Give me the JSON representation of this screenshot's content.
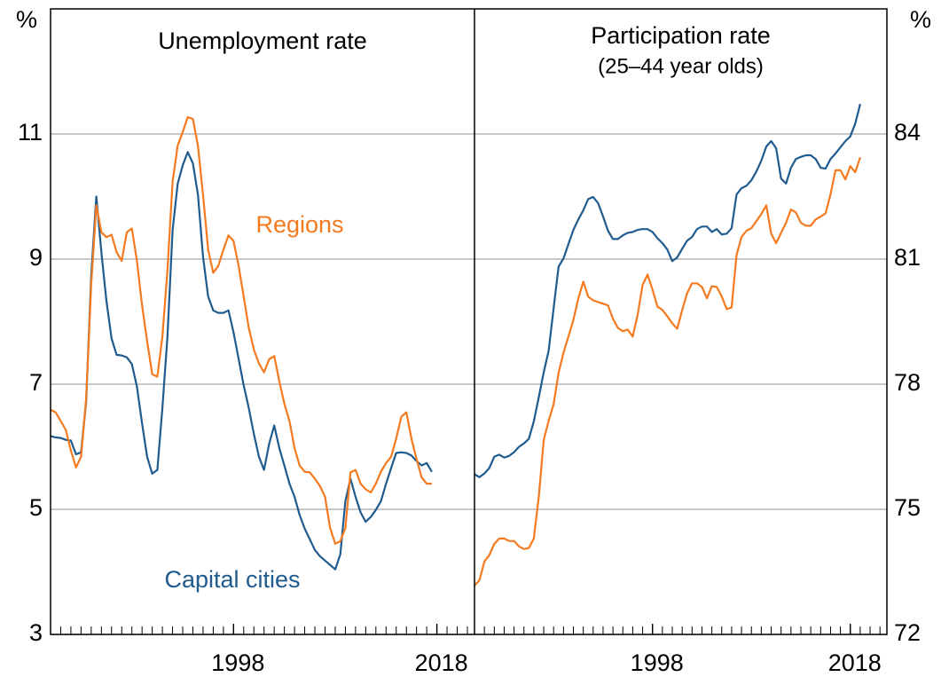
{
  "chart_data": [
    {
      "type": "line",
      "title": "Unemployment rate",
      "y_label": "%",
      "x": [
        1980,
        1980.5,
        1981,
        1981.5,
        1982,
        1982.5,
        1983,
        1983.5,
        1984,
        1984.5,
        1985,
        1985.5,
        1986,
        1986.5,
        1987,
        1987.5,
        1988,
        1988.5,
        1989,
        1989.5,
        1990,
        1990.5,
        1991,
        1991.5,
        1992,
        1992.5,
        1993,
        1993.5,
        1994,
        1994.5,
        1995,
        1995.5,
        1996,
        1996.5,
        1997,
        1997.5,
        1998,
        1998.5,
        1999,
        1999.5,
        2000,
        2000.5,
        2001,
        2001.5,
        2002,
        2002.5,
        2003,
        2003.5,
        2004,
        2004.5,
        2005,
        2005.5,
        2006,
        2006.5,
        2007,
        2007.5,
        2008,
        2008.5,
        2009,
        2009.5,
        2010,
        2010.5,
        2011,
        2011.5,
        2012,
        2012.5,
        2013,
        2013.5,
        2014,
        2014.5,
        2015,
        2015.5,
        2016,
        2016.5,
        2017,
        2017.5
      ],
      "xlim": [
        1980,
        2021.7
      ],
      "xticks": [
        1998,
        2018
      ],
      "ylim": [
        3,
        13
      ],
      "yticks": [
        3,
        5,
        7,
        9,
        11
      ],
      "grid": true,
      "series": [
        {
          "name": "Capital cities",
          "color": "#1f5b8e",
          "values": [
            6.17,
            6.15,
            6.14,
            6.11,
            6.1,
            5.88,
            5.91,
            6.71,
            8.75,
            10.0,
            9.11,
            8.33,
            7.73,
            7.47,
            7.46,
            7.43,
            7.32,
            6.96,
            6.37,
            5.84,
            5.57,
            5.63,
            6.62,
            7.76,
            9.46,
            10.2,
            10.5,
            10.71,
            10.53,
            10.03,
            9.04,
            8.4,
            8.18,
            8.14,
            8.14,
            8.18,
            7.83,
            7.4,
            6.98,
            6.62,
            6.2,
            5.84,
            5.63,
            6.05,
            6.34,
            5.98,
            5.7,
            5.41,
            5.2,
            4.91,
            4.69,
            4.52,
            4.35,
            4.25,
            4.18,
            4.11,
            4.04,
            4.28,
            5.13,
            5.49,
            5.2,
            4.95,
            4.8,
            4.88,
            4.99,
            5.13,
            5.41,
            5.66,
            5.9,
            5.91,
            5.9,
            5.86,
            5.77,
            5.7,
            5.74,
            5.6
          ]
        },
        {
          "name": "Regions",
          "color": "#f47a20",
          "values": [
            6.59,
            6.55,
            6.41,
            6.27,
            5.94,
            5.67,
            5.84,
            6.76,
            8.61,
            9.86,
            9.43,
            9.35,
            9.39,
            9.11,
            8.97,
            9.43,
            9.49,
            8.97,
            8.26,
            7.69,
            7.16,
            7.12,
            7.76,
            8.82,
            10.24,
            10.81,
            11.03,
            11.27,
            11.24,
            10.81,
            10.03,
            9.15,
            8.78,
            8.89,
            9.15,
            9.38,
            9.29,
            8.89,
            8.4,
            7.9,
            7.55,
            7.33,
            7.19,
            7.4,
            7.45,
            7.05,
            6.69,
            6.41,
            5.98,
            5.7,
            5.6,
            5.59,
            5.49,
            5.37,
            5.2,
            4.7,
            4.45,
            4.49,
            4.7,
            5.59,
            5.63,
            5.41,
            5.32,
            5.27,
            5.41,
            5.6,
            5.74,
            5.84,
            6.13,
            6.48,
            6.55,
            6.13,
            5.8,
            5.51,
            5.41,
            5.41
          ]
        }
      ]
    },
    {
      "type": "line",
      "title": "Participation rate",
      "subtitle": "(25–44 year olds)",
      "y_label": "%",
      "x": [
        1980,
        1980.5,
        1981,
        1981.5,
        1982,
        1982.5,
        1983,
        1983.5,
        1984,
        1984.5,
        1985,
        1985.5,
        1986,
        1986.5,
        1987,
        1987.5,
        1988,
        1988.5,
        1989,
        1989.5,
        1990,
        1990.5,
        1991,
        1991.5,
        1992,
        1992.5,
        1993,
        1993.5,
        1994,
        1994.5,
        1995,
        1995.5,
        1996,
        1996.5,
        1997,
        1997.5,
        1998,
        1998.5,
        1999,
        1999.5,
        2000,
        2000.5,
        2001,
        2001.5,
        2002,
        2002.5,
        2003,
        2003.5,
        2004,
        2004.5,
        2005,
        2005.5,
        2006,
        2006.5,
        2007,
        2007.5,
        2008,
        2008.5,
        2009,
        2009.5,
        2010,
        2010.5,
        2011,
        2011.5,
        2012,
        2012.5,
        2013,
        2013.5,
        2014,
        2014.5,
        2015,
        2015.5,
        2016,
        2016.5,
        2017,
        2017.5,
        2018,
        2018.5,
        2019
      ],
      "xlim": [
        1980,
        2021.7
      ],
      "xticks": [
        1998,
        2018
      ],
      "ylim": [
        72,
        87
      ],
      "yticks": [
        72,
        75,
        78,
        81,
        84
      ],
      "grid": true,
      "series": [
        {
          "color": "#1f5b8e",
          "values": [
            75.84,
            75.77,
            75.86,
            75.99,
            76.26,
            76.31,
            76.24,
            76.28,
            76.37,
            76.5,
            76.58,
            76.69,
            77.11,
            77.69,
            78.29,
            78.8,
            79.82,
            80.82,
            81.02,
            81.36,
            81.7,
            81.95,
            82.17,
            82.44,
            82.49,
            82.34,
            82.02,
            81.68,
            81.48,
            81.48,
            81.57,
            81.63,
            81.65,
            81.7,
            81.72,
            81.72,
            81.65,
            81.5,
            81.38,
            81.23,
            80.95,
            81.04,
            81.25,
            81.44,
            81.53,
            81.72,
            81.78,
            81.78,
            81.65,
            81.72,
            81.59,
            81.61,
            81.74,
            82.55,
            82.7,
            82.76,
            82.89,
            83.1,
            83.36,
            83.7,
            83.83,
            83.66,
            82.93,
            82.81,
            83.19,
            83.4,
            83.45,
            83.49,
            83.49,
            83.4,
            83.19,
            83.17,
            83.4,
            83.53,
            83.68,
            83.83,
            83.94,
            84.25,
            84.72
          ]
        },
        {
          "color": "#f47a20",
          "values": [
            73.17,
            73.3,
            73.75,
            73.9,
            74.17,
            74.3,
            74.3,
            74.24,
            74.24,
            74.11,
            74.05,
            74.07,
            74.3,
            75.3,
            76.67,
            77.12,
            77.52,
            78.27,
            78.76,
            79.14,
            79.54,
            80.06,
            80.46,
            80.1,
            80.01,
            79.97,
            79.93,
            79.89,
            79.57,
            79.35,
            79.27,
            79.31,
            79.14,
            79.67,
            80.38,
            80.63,
            80.27,
            79.86,
            79.78,
            79.63,
            79.46,
            79.33,
            79.78,
            80.18,
            80.42,
            80.42,
            80.33,
            80.06,
            80.35,
            80.33,
            80.1,
            79.8,
            79.84,
            81.1,
            81.53,
            81.68,
            81.74,
            81.91,
            82.08,
            82.29,
            81.61,
            81.38,
            81.63,
            81.87,
            82.19,
            82.12,
            81.87,
            81.8,
            81.8,
            81.95,
            82.02,
            82.1,
            82.55,
            83.13,
            83.13,
            82.91,
            83.23,
            83.08,
            83.44
          ]
        }
      ]
    }
  ]
}
